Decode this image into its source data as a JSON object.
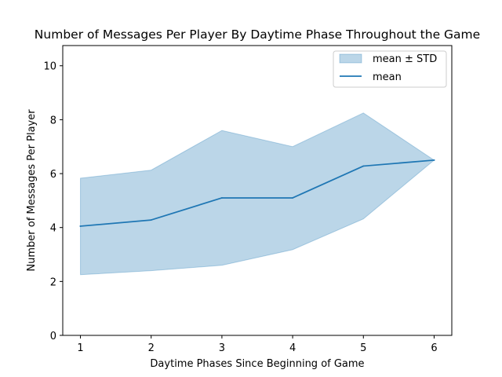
{
  "chart_data": {
    "type": "line",
    "title": "Number of Messages Per Player By Daytime Phase Throughout the Game",
    "xlabel": "Daytime Phases Since Beginning of Game",
    "ylabel": "Number of Messages Per Player",
    "x": [
      1,
      2,
      3,
      4,
      5,
      6
    ],
    "x_ticks": [
      "1",
      "2",
      "3",
      "4",
      "5",
      "6"
    ],
    "y_ticks": [
      "0",
      "2",
      "4",
      "6",
      "8",
      "10"
    ],
    "xlim": [
      0.75,
      6.25
    ],
    "ylim": [
      0,
      10.75
    ],
    "series": [
      {
        "name": "mean",
        "kind": "line",
        "color": "#1f77b4",
        "values": [
          4.05,
          4.28,
          5.1,
          5.1,
          6.28,
          6.5
        ]
      },
      {
        "name": "mean ± STD",
        "kind": "band",
        "color": "#1f77b4",
        "upper": [
          5.83,
          6.13,
          7.6,
          7.0,
          8.25,
          6.5
        ],
        "lower": [
          2.25,
          2.4,
          2.6,
          3.18,
          4.32,
          6.5
        ]
      }
    ],
    "legend": {
      "placement": "top-right",
      "entries": [
        "mean ± STD",
        "mean"
      ]
    },
    "grid": false
  }
}
